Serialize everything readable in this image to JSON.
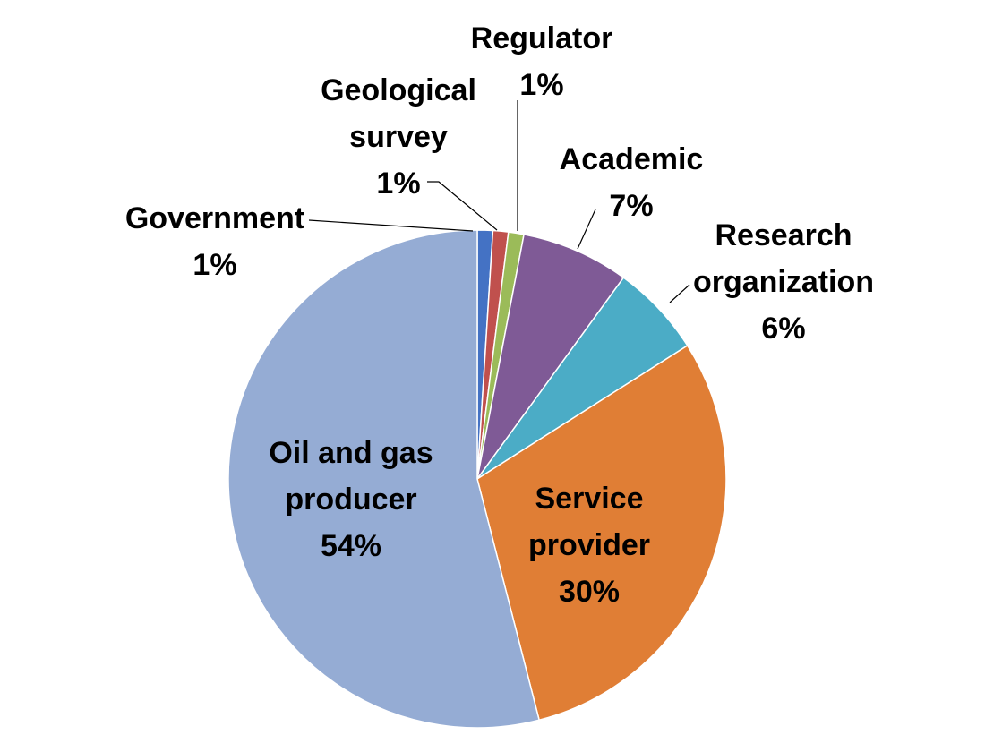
{
  "chart_data": {
    "type": "pie",
    "title": "",
    "start": "12 o'clock",
    "direction": "clockwise",
    "slices": [
      {
        "label": "Government",
        "value": 1,
        "pct": "1%",
        "color": "#4472C4"
      },
      {
        "label": "Geological survey",
        "label_lines": [
          "Geological",
          "survey"
        ],
        "value": 1,
        "pct": "1%",
        "color": "#C0504D"
      },
      {
        "label": "Regulator",
        "value": 1,
        "pct": "1%",
        "color": "#9BBB59"
      },
      {
        "label": "Academic",
        "value": 7,
        "pct": "7%",
        "color": "#7F5A96"
      },
      {
        "label": "Research organization",
        "label_lines": [
          "Research",
          "organization"
        ],
        "value": 6,
        "pct": "6%",
        "color": "#4BACC6"
      },
      {
        "label": "Service provider",
        "label_lines": [
          "Service",
          "provider"
        ],
        "value": 30,
        "pct": "30%",
        "color": "#E07E35"
      },
      {
        "label": "Oil and gas producer",
        "label_lines": [
          "Oil and gas",
          "producer"
        ],
        "value": 54,
        "pct": "54%",
        "color": "#95ACD4"
      }
    ]
  }
}
